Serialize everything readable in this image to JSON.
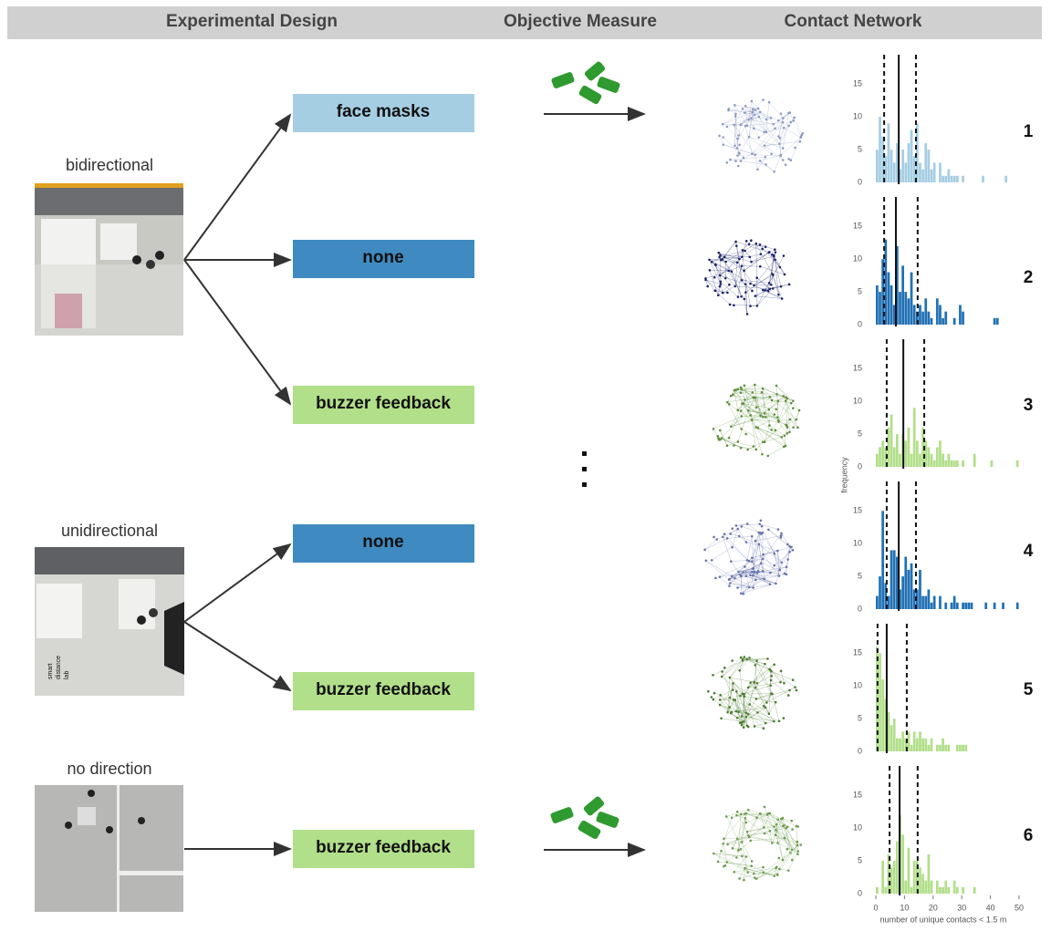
{
  "header": {
    "columns": [
      "Experimental Design",
      "Objective Measure",
      "Contact Network"
    ]
  },
  "conditions": [
    {
      "label": "bidirectional"
    },
    {
      "label": "unidirectional",
      "photo_caption": [
        "smart",
        "distance",
        "lab"
      ]
    },
    {
      "label": "no direction"
    }
  ],
  "boxes": [
    {
      "label": "face masks",
      "color": "#a6cee3"
    },
    {
      "label": "none",
      "color": "#3f8bc1"
    },
    {
      "label": "buzzer feedback",
      "color": "#b2df8a"
    },
    {
      "label": "none",
      "color": "#3f8bc1"
    },
    {
      "label": "buzzer feedback",
      "color": "#b2df8a"
    },
    {
      "label": "buzzer feedback",
      "color": "#b2df8a"
    }
  ],
  "histograms": {
    "ylabel": "frequency",
    "xlabel": "number of unique contacts < 1.5 m",
    "bins": [
      0,
      1,
      2,
      3,
      4,
      5,
      6,
      7,
      8,
      9,
      10,
      11,
      12,
      13,
      14,
      15,
      16,
      17,
      18,
      19,
      20,
      21,
      22,
      23,
      24,
      25,
      26,
      27,
      28,
      29,
      30,
      31,
      32,
      33,
      34,
      35,
      36,
      37,
      38,
      39,
      40,
      41,
      42,
      43,
      44,
      45,
      46,
      47,
      48,
      49,
      50
    ],
    "xlim": [
      0,
      50
    ],
    "xticks": [
      0,
      10,
      20,
      30,
      40,
      50
    ],
    "ylim": [
      0,
      19.5
    ],
    "yticks": [
      0,
      5,
      10,
      15
    ],
    "panels": [
      {
        "label": "1",
        "color": "#a6cee3",
        "mean": 8,
        "sd_low": 2.9,
        "sd_high": 14,
        "counts": [
          5,
          10,
          7,
          4,
          9,
          5,
          3,
          6,
          2,
          5,
          3,
          6,
          8,
          4,
          9,
          3,
          2,
          6,
          5,
          2,
          3,
          0,
          3,
          1,
          1,
          2,
          1,
          1,
          1,
          0,
          1,
          0,
          0,
          0,
          0,
          0,
          0,
          1,
          0,
          0,
          0,
          0,
          0,
          0,
          0,
          1,
          0,
          0,
          0,
          0
        ]
      },
      {
        "label": "2",
        "color": "#2171b5",
        "mean": 7,
        "sd_low": 2.9,
        "sd_high": 14.6,
        "counts": [
          6,
          5,
          10,
          13,
          8,
          6,
          3,
          12,
          5,
          9,
          5,
          4,
          8,
          3,
          2,
          3,
          2,
          4,
          2,
          1,
          0,
          4,
          3,
          1,
          2,
          0,
          0,
          1,
          0,
          3,
          2,
          0,
          0,
          0,
          0,
          0,
          0,
          0,
          0,
          0,
          0,
          1,
          1,
          0,
          0,
          0,
          0,
          0,
          0,
          0
        ]
      },
      {
        "label": "3",
        "color": "#b2df8a",
        "mean": 9.6,
        "sd_low": 3.8,
        "sd_high": 16.9,
        "counts": [
          2,
          3,
          4,
          3,
          6,
          8,
          3,
          5,
          2,
          5,
          4,
          6,
          2,
          9,
          4,
          2,
          6,
          4,
          3,
          2,
          1,
          3,
          4,
          2,
          1,
          2,
          1,
          1,
          1,
          0,
          1,
          0,
          0,
          0,
          2,
          0,
          0,
          0,
          0,
          0,
          1,
          0,
          0,
          0,
          0,
          0,
          0,
          0,
          0,
          1
        ]
      },
      {
        "label": "4",
        "color": "#2171b5",
        "mean": 8,
        "sd_low": 3.8,
        "sd_high": 14,
        "counts": [
          2,
          5,
          15,
          4,
          2,
          9,
          9,
          8,
          3,
          5,
          8,
          6,
          7,
          3,
          3,
          6,
          2,
          2,
          3,
          1,
          2,
          0,
          2,
          0,
          1,
          0,
          1,
          2,
          1,
          0,
          1,
          1,
          1,
          1,
          0,
          0,
          0,
          0,
          1,
          0,
          0,
          1,
          0,
          0,
          1,
          0,
          0,
          0,
          0,
          1
        ]
      },
      {
        "label": "5",
        "color": "#b2df8a",
        "mean": 3.8,
        "sd_low": 0.6,
        "sd_high": 10.8,
        "counts": [
          16,
          15,
          11,
          8,
          6,
          4,
          5,
          2,
          2,
          3,
          2,
          3,
          1,
          3,
          2,
          3,
          2,
          2,
          1,
          2,
          0,
          1,
          1,
          2,
          1,
          1,
          0,
          0,
          1,
          1,
          1,
          1,
          0,
          0,
          0,
          0,
          0,
          0,
          0,
          0,
          0,
          0,
          0,
          0,
          0,
          0,
          0,
          0,
          0,
          0
        ]
      },
      {
        "label": "6",
        "color": "#b2df8a",
        "mean": 8.3,
        "sd_low": 4.8,
        "sd_high": 14.6,
        "counts": [
          1,
          0,
          5,
          1,
          6,
          4,
          5,
          8,
          12,
          9,
          2,
          7,
          1,
          5,
          5,
          4,
          3,
          2,
          6,
          2,
          0,
          2,
          1,
          1,
          2,
          1,
          0,
          2,
          1,
          0,
          1,
          0,
          0,
          0,
          1,
          0,
          0,
          0,
          0,
          0,
          0,
          0,
          0,
          0,
          0,
          0,
          0,
          0,
          0,
          0
        ]
      }
    ]
  }
}
